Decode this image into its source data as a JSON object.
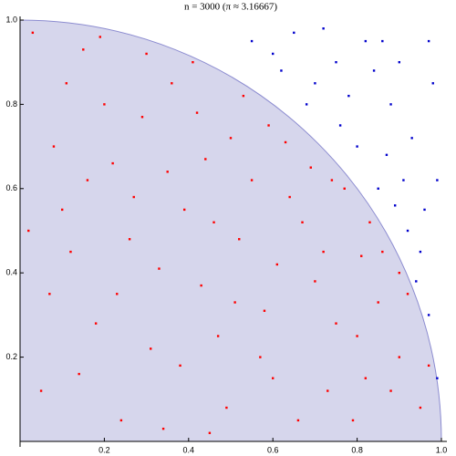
{
  "chart_data": {
    "type": "scatter",
    "title": "n = 3000 (π ≈ 3.16667)",
    "xlim": [
      0,
      1
    ],
    "ylim": [
      0,
      1
    ],
    "xticks": [
      0.2,
      0.4,
      0.6,
      0.8,
      {
        "value": 1,
        "label": "1.0"
      }
    ],
    "yticks": [
      0.2,
      0.4,
      0.6,
      0.8,
      {
        "value": 1,
        "label": "1.0"
      }
    ],
    "series": [
      {
        "color": "#ff0000",
        "x": [
          0.05,
          0.12,
          0.2,
          0.31,
          0.44,
          0.58,
          0.67,
          0.73,
          0.81,
          0.9,
          0.15,
          0.27,
          0.36,
          0.49,
          0.52,
          0.63,
          0.77,
          0.85,
          0.95,
          0.08,
          0.18,
          0.24,
          0.33,
          0.41,
          0.47,
          0.55,
          0.6,
          0.7,
          0.75,
          0.88,
          0.03,
          0.1,
          0.22,
          0.29,
          0.38,
          0.46,
          0.53,
          0.61,
          0.69,
          0.79,
          0.83,
          0.92,
          0.07,
          0.14,
          0.19,
          0.26,
          0.35,
          0.43,
          0.5,
          0.57,
          0.64,
          0.72,
          0.8,
          0.86,
          0.97,
          0.02,
          0.11,
          0.23,
          0.3,
          0.39,
          0.45,
          0.51,
          0.59,
          0.66,
          0.74,
          0.82,
          0.9,
          0.16,
          0.34,
          0.42
        ],
        "y": [
          0.12,
          0.45,
          0.8,
          0.22,
          0.67,
          0.31,
          0.52,
          0.12,
          0.44,
          0.2,
          0.93,
          0.58,
          0.85,
          0.08,
          0.48,
          0.71,
          0.6,
          0.33,
          0.08,
          0.7,
          0.28,
          0.05,
          0.41,
          0.9,
          0.25,
          0.62,
          0.15,
          0.38,
          0.28,
          0.12,
          0.97,
          0.55,
          0.66,
          0.77,
          0.18,
          0.52,
          0.82,
          0.42,
          0.65,
          0.05,
          0.52,
          0.35,
          0.35,
          0.16,
          0.96,
          0.48,
          0.64,
          0.37,
          0.72,
          0.2,
          0.58,
          0.45,
          0.25,
          0.45,
          0.18,
          0.5,
          0.85,
          0.35,
          0.92,
          0.55,
          0.02,
          0.33,
          0.75,
          0.05,
          0.62,
          0.15,
          0.4,
          0.62,
          0.03,
          0.78
        ]
      },
      {
        "color": "#0000cc",
        "x": [
          0.82,
          0.91,
          0.75,
          0.88,
          0.95,
          0.97,
          0.65,
          0.7,
          0.93,
          0.85,
          0.99,
          0.8,
          0.6,
          0.9,
          0.78,
          0.96,
          0.87,
          0.72,
          0.98,
          0.84,
          0.94,
          0.92,
          0.55,
          0.68,
          0.99,
          0.76,
          0.86,
          0.97,
          0.62,
          0.89
        ],
        "y": [
          0.95,
          0.62,
          0.9,
          0.8,
          0.45,
          0.3,
          0.97,
          0.85,
          0.72,
          0.6,
          0.15,
          0.7,
          0.92,
          0.9,
          0.82,
          0.55,
          0.68,
          0.98,
          0.85,
          0.88,
          0.38,
          0.5,
          0.95,
          0.8,
          0.62,
          0.75,
          0.95,
          0.95,
          0.88,
          0.56
        ]
      }
    ]
  }
}
